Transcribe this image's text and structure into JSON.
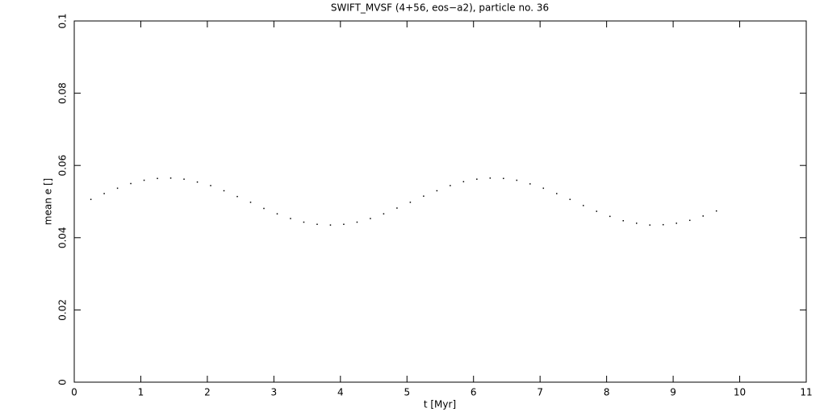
{
  "chart_data": {
    "type": "scatter",
    "title": "SWIFT_MVSF (4+56, eos−a2), particle no. 36",
    "x_label": "t [Myr]",
    "y_label": "mean e []",
    "x": [
      0.25,
      0.45,
      0.65,
      0.85,
      1.05,
      1.25,
      1.45,
      1.65,
      1.85,
      2.05,
      2.25,
      2.45,
      2.65,
      2.85,
      3.05,
      3.25,
      3.45,
      3.65,
      3.85,
      4.05,
      4.25,
      4.45,
      4.65,
      4.85,
      5.05,
      5.25,
      5.45,
      5.65,
      5.85,
      6.05,
      6.25,
      6.45,
      6.65,
      6.85,
      7.05,
      7.25,
      7.45,
      7.65,
      7.85,
      8.05,
      8.25,
      8.45,
      8.65,
      8.85,
      9.05,
      9.25,
      9.45,
      9.65
    ],
    "values": [
      0.0506,
      0.0522,
      0.0537,
      0.055,
      0.0559,
      0.0564,
      0.0565,
      0.0562,
      0.0554,
      0.0544,
      0.053,
      0.0514,
      0.0498,
      0.0481,
      0.0466,
      0.0453,
      0.0443,
      0.0437,
      0.0435,
      0.0437,
      0.0443,
      0.0453,
      0.0466,
      0.0482,
      0.0498,
      0.0515,
      0.053,
      0.0544,
      0.0555,
      0.0562,
      0.0565,
      0.0564,
      0.0559,
      0.0549,
      0.0537,
      0.0522,
      0.0506,
      0.0489,
      0.0473,
      0.0459,
      0.0447,
      0.044,
      0.0435,
      0.0436,
      0.044,
      0.0448,
      0.046,
      0.0474
    ],
    "color": "#000000",
    "xlim": [
      0,
      11
    ],
    "xticks": [
      0,
      1,
      2,
      3,
      4,
      5,
      6,
      7,
      8,
      9,
      10,
      11
    ],
    "ylim": [
      0,
      0.1
    ],
    "yticks": [
      0,
      0.02,
      0.04,
      0.06,
      0.08,
      0.1
    ],
    "grid": false
  }
}
